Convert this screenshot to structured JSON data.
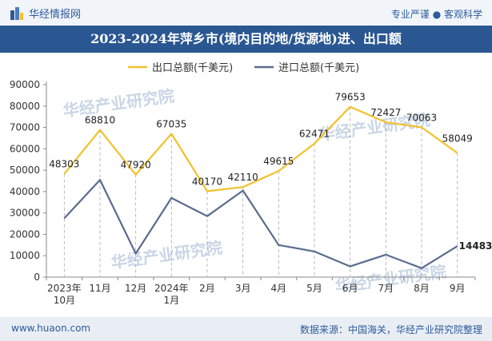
{
  "header": {
    "brand": "华经情报网",
    "slogan": "专业严谨 ● 客观科学"
  },
  "footer": {
    "url": "www.huaon.com",
    "source": "数据来源：中国海关，华经产业研究院整理"
  },
  "watermark": "华经产业研究院",
  "colors": {
    "export": "#f2c12e",
    "import": "#5b6b8f",
    "title_bg": "#2a5792"
  },
  "chart_data": {
    "type": "line",
    "title": "2023-2024年萍乡市(境内目的地/货源地)进、出口额",
    "categories": [
      [
        "2023年",
        "10月"
      ],
      [
        "11月"
      ],
      [
        "12月"
      ],
      [
        "2024年",
        "1月"
      ],
      [
        "2月"
      ],
      [
        "3月"
      ],
      [
        "4月"
      ],
      [
        "5月"
      ],
      [
        "6月"
      ],
      [
        "7月"
      ],
      [
        "8月"
      ],
      [
        "9月"
      ]
    ],
    "ylim": [
      0,
      90000
    ],
    "yticks": [
      0,
      10000,
      20000,
      30000,
      40000,
      50000,
      60000,
      70000,
      80000,
      90000
    ],
    "legend_position": "top-center",
    "grid": false,
    "series": [
      {
        "name": "出口总额(千美元)",
        "values": [
          48303,
          68810,
          47920,
          67035,
          40170,
          42110,
          49615,
          62471,
          79653,
          72427,
          70063,
          58049
        ],
        "labels": [
          "48303",
          "68810",
          "47920",
          "67035",
          "40170",
          "42110",
          "49615",
          "62471",
          "79653",
          "72427",
          "70063",
          "58049"
        ]
      },
      {
        "name": "进口总额(千美元)",
        "values": [
          27500,
          45500,
          11000,
          37000,
          28500,
          40500,
          15000,
          12000,
          5000,
          10500,
          4200,
          14483
        ],
        "labels": [
          "",
          "",
          "",
          "",
          "",
          "",
          "",
          "",
          "",
          "",
          "",
          "14483"
        ]
      }
    ]
  }
}
